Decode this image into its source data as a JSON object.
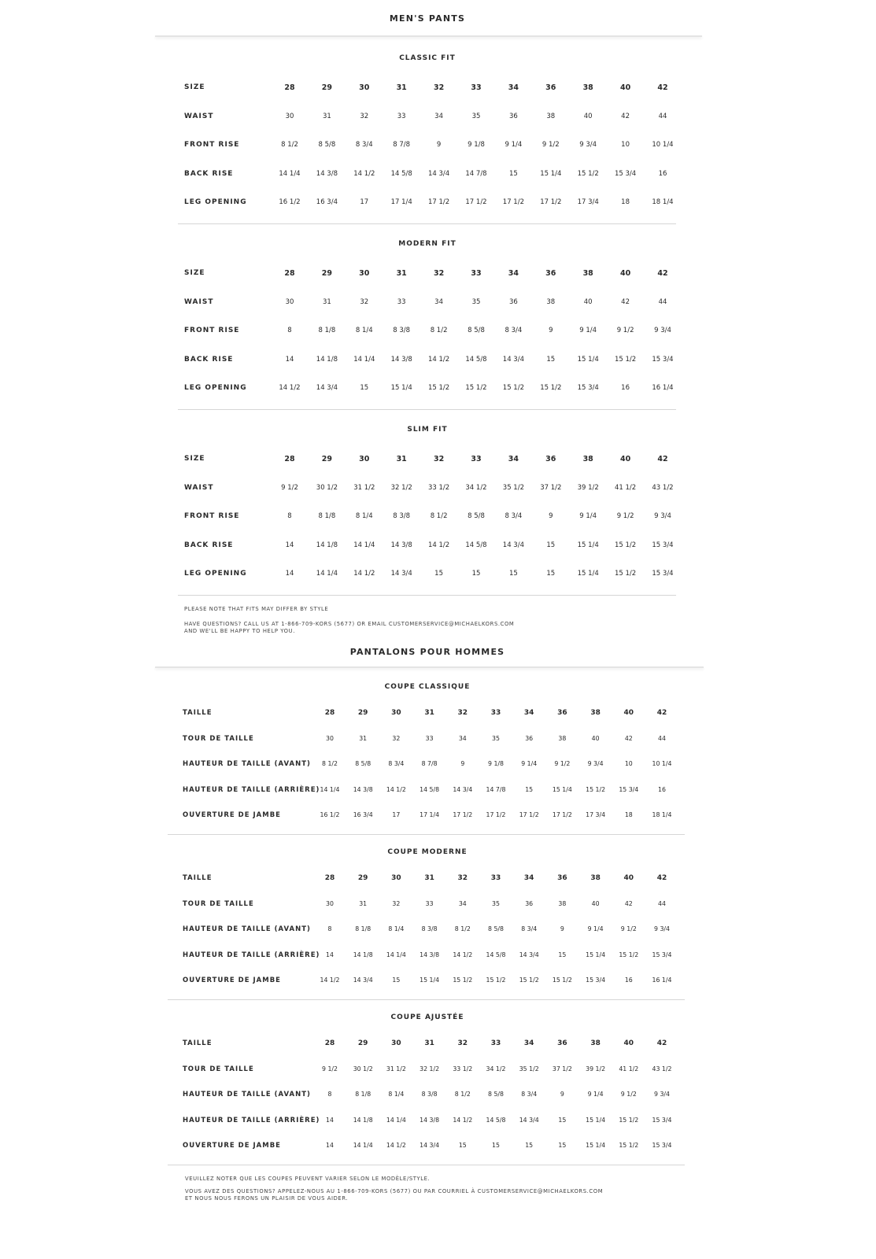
{
  "english": {
    "title": "MEN'S PANTS",
    "sections": [
      {
        "title": "CLASSIC FIT",
        "rows": [
          {
            "label": "SIZE",
            "values": [
              "28",
              "29",
              "30",
              "31",
              "32",
              "33",
              "34",
              "36",
              "38",
              "40",
              "42"
            ]
          },
          {
            "label": "WAIST",
            "values": [
              "30",
              "31",
              "32",
              "33",
              "34",
              "35",
              "36",
              "38",
              "40",
              "42",
              "44"
            ]
          },
          {
            "label": "FRONT RISE",
            "values": [
              "8 1/2",
              "8 5/8",
              "8 3/4",
              "8 7/8",
              "9",
              "9 1/8",
              "9 1/4",
              "9 1/2",
              "9 3/4",
              "10",
              "10 1/4"
            ]
          },
          {
            "label": "BACK RISE",
            "values": [
              "14 1/4",
              "14 3/8",
              "14 1/2",
              "14 5/8",
              "14 3/4",
              "14 7/8",
              "15",
              "15 1/4",
              "15 1/2",
              "15 3/4",
              "16"
            ]
          },
          {
            "label": "LEG OPENING",
            "values": [
              "16 1/2",
              "16 3/4",
              "17",
              "17 1/4",
              "17 1/2",
              "17 1/2",
              "17 1/2",
              "17 1/2",
              "17 3/4",
              "18",
              "18 1/4"
            ]
          }
        ]
      },
      {
        "title": "MODERN FIT",
        "rows": [
          {
            "label": "SIZE",
            "values": [
              "28",
              "29",
              "30",
              "31",
              "32",
              "33",
              "34",
              "36",
              "38",
              "40",
              "42"
            ]
          },
          {
            "label": "WAIST",
            "values": [
              "30",
              "31",
              "32",
              "33",
              "34",
              "35",
              "36",
              "38",
              "40",
              "42",
              "44"
            ]
          },
          {
            "label": "FRONT RISE",
            "values": [
              "8",
              "8 1/8",
              "8 1/4",
              "8 3/8",
              "8 1/2",
              "8 5/8",
              "8 3/4",
              "9",
              "9 1/4",
              "9 1/2",
              "9 3/4"
            ]
          },
          {
            "label": "BACK RISE",
            "values": [
              "14",
              "14 1/8",
              "14 1/4",
              "14 3/8",
              "14 1/2",
              "14 5/8",
              "14 3/4",
              "15",
              "15 1/4",
              "15 1/2",
              "15 3/4"
            ]
          },
          {
            "label": "LEG OPENING",
            "values": [
              "14 1/2",
              "14 3/4",
              "15",
              "15 1/4",
              "15 1/2",
              "15 1/2",
              "15 1/2",
              "15 1/2",
              "15 3/4",
              "16",
              "16 1/4"
            ]
          }
        ]
      },
      {
        "title": "SLIM FIT",
        "rows": [
          {
            "label": "SIZE",
            "values": [
              "28",
              "29",
              "30",
              "31",
              "32",
              "33",
              "34",
              "36",
              "38",
              "40",
              "42"
            ]
          },
          {
            "label": "WAIST",
            "values": [
              "9 1/2",
              "30 1/2",
              "31 1/2",
              "32 1/2",
              "33 1/2",
              "34 1/2",
              "35 1/2",
              "37 1/2",
              "39 1/2",
              "41 1/2",
              "43 1/2"
            ]
          },
          {
            "label": "FRONT RISE",
            "values": [
              "8",
              "8 1/8",
              "8 1/4",
              "8 3/8",
              "8 1/2",
              "8 5/8",
              "8 3/4",
              "9",
              "9 1/4",
              "9 1/2",
              "9 3/4"
            ]
          },
          {
            "label": "BACK RISE",
            "values": [
              "14",
              "14 1/8",
              "14 1/4",
              "14 3/8",
              "14 1/2",
              "14 5/8",
              "14 3/4",
              "15",
              "15 1/4",
              "15 1/2",
              "15 3/4"
            ]
          },
          {
            "label": "LEG OPENING",
            "values": [
              "14",
              "14 1/4",
              "14 1/2",
              "14 3/4",
              "15",
              "15",
              "15",
              "15",
              "15 1/4",
              "15 1/2",
              "15 3/4"
            ]
          }
        ]
      }
    ],
    "note": "PLEASE NOTE THAT FITS MAY DIFFER BY STYLE",
    "contact_line1": "HAVE QUESTIONS? CALL US AT 1-866-709-KORS (5677) OR EMAIL CUSTOMERSERVICE@MICHAELKORS.COM",
    "contact_line2": "AND WE'LL BE HAPPY TO HELP YOU."
  },
  "french": {
    "title": "PANTALONS POUR HOMMES",
    "sections": [
      {
        "title": "COUPE CLASSIQUE",
        "rows": [
          {
            "label": "TAILLE",
            "values": [
              "28",
              "29",
              "30",
              "31",
              "32",
              "33",
              "34",
              "36",
              "38",
              "40",
              "42"
            ]
          },
          {
            "label": "TOUR DE TAILLE",
            "values": [
              "30",
              "31",
              "32",
              "33",
              "34",
              "35",
              "36",
              "38",
              "40",
              "42",
              "44"
            ]
          },
          {
            "label": "HAUTEUR DE TAILLE (AVANT)",
            "values": [
              "8 1/2",
              "8 5/8",
              "8 3/4",
              "8 7/8",
              "9",
              "9 1/8",
              "9 1/4",
              "9 1/2",
              "9 3/4",
              "10",
              "10 1/4"
            ]
          },
          {
            "label": "HAUTEUR DE TAILLE (ARRIÈRE)",
            "values": [
              "14 1/4",
              "14 3/8",
              "14 1/2",
              "14 5/8",
              "14 3/4",
              "14 7/8",
              "15",
              "15 1/4",
              "15 1/2",
              "15 3/4",
              "16"
            ]
          },
          {
            "label": "OUVERTURE DE JAMBE",
            "values": [
              "16 1/2",
              "16 3/4",
              "17",
              "17 1/4",
              "17 1/2",
              "17 1/2",
              "17 1/2",
              "17 1/2",
              "17 3/4",
              "18",
              "18 1/4"
            ]
          }
        ]
      },
      {
        "title": "COUPE MODERNE",
        "rows": [
          {
            "label": "TAILLE",
            "values": [
              "28",
              "29",
              "30",
              "31",
              "32",
              "33",
              "34",
              "36",
              "38",
              "40",
              "42"
            ]
          },
          {
            "label": "TOUR DE TAILLE",
            "values": [
              "30",
              "31",
              "32",
              "33",
              "34",
              "35",
              "36",
              "38",
              "40",
              "42",
              "44"
            ]
          },
          {
            "label": "HAUTEUR DE TAILLE (AVANT)",
            "values": [
              "8",
              "8 1/8",
              "8 1/4",
              "8 3/8",
              "8 1/2",
              "8 5/8",
              "8 3/4",
              "9",
              "9 1/4",
              "9 1/2",
              "9 3/4"
            ]
          },
          {
            "label": "HAUTEUR DE TAILLE (ARRIÈRE)",
            "values": [
              "14",
              "14 1/8",
              "14 1/4",
              "14 3/8",
              "14 1/2",
              "14 5/8",
              "14 3/4",
              "15",
              "15 1/4",
              "15 1/2",
              "15 3/4"
            ]
          },
          {
            "label": "OUVERTURE DE JAMBE",
            "values": [
              "14 1/2",
              "14 3/4",
              "15",
              "15 1/4",
              "15 1/2",
              "15 1/2",
              "15 1/2",
              "15 1/2",
              "15 3/4",
              "16",
              "16 1/4"
            ]
          }
        ]
      },
      {
        "title": "COUPE AJUSTÉE",
        "rows": [
          {
            "label": "TAILLE",
            "values": [
              "28",
              "29",
              "30",
              "31",
              "32",
              "33",
              "34",
              "36",
              "38",
              "40",
              "42"
            ]
          },
          {
            "label": "TOUR DE TAILLE",
            "values": [
              "9 1/2",
              "30 1/2",
              "31 1/2",
              "32 1/2",
              "33 1/2",
              "34 1/2",
              "35 1/2",
              "37 1/2",
              "39 1/2",
              "41 1/2",
              "43 1/2"
            ]
          },
          {
            "label": "HAUTEUR DE TAILLE (AVANT)",
            "values": [
              "8",
              "8 1/8",
              "8 1/4",
              "8 3/8",
              "8 1/2",
              "8 5/8",
              "8 3/4",
              "9",
              "9 1/4",
              "9 1/2",
              "9 3/4"
            ]
          },
          {
            "label": "HAUTEUR DE TAILLE (ARRIÈRE)",
            "values": [
              "14",
              "14 1/8",
              "14 1/4",
              "14 3/8",
              "14 1/2",
              "14 5/8",
              "14 3/4",
              "15",
              "15 1/4",
              "15 1/2",
              "15 3/4"
            ]
          },
          {
            "label": "OUVERTURE DE JAMBE",
            "values": [
              "14",
              "14 1/4",
              "14 1/2",
              "14 3/4",
              "15",
              "15",
              "15",
              "15",
              "15 1/4",
              "15 1/2",
              "15 3/4"
            ]
          }
        ]
      }
    ],
    "note": "VEUILLEZ NOTER QUE LES COUPES PEUVENT VARIER SELON LE MODÈLE/STYLE.",
    "contact_line1": "VOUS AVEZ DES QUESTIONS? APPELEZ-NOUS AU 1-866-709-KORS (5677) OU PAR COURRIEL À CUSTOMERSERVICE@MICHAELKORS.COM",
    "contact_line2": "ET NOUS NOUS FERONS UN PLAISIR DE VOUS AIDER."
  }
}
